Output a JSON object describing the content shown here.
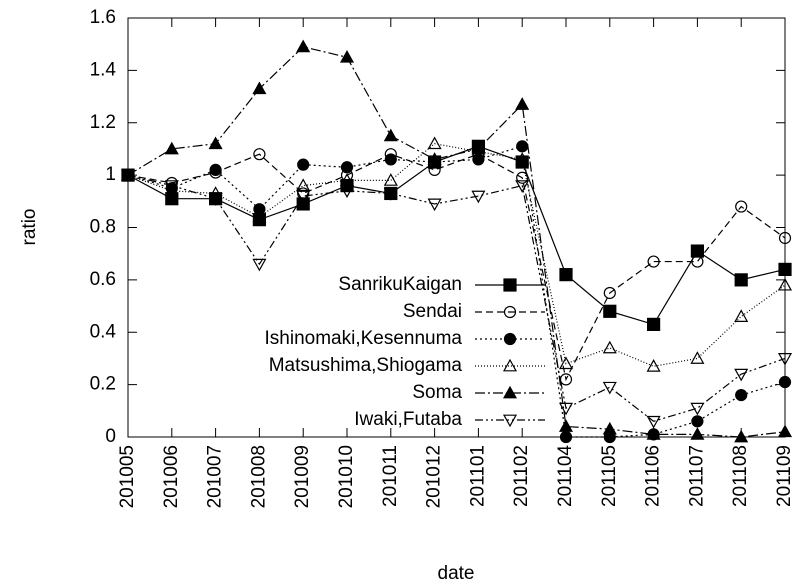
{
  "chart_data": {
    "type": "line",
    "xlabel": "date",
    "ylabel": "ratio",
    "categories": [
      "201005",
      "201006",
      "201007",
      "201008",
      "201009",
      "201010",
      "201011",
      "201012",
      "201101",
      "201102",
      "201104",
      "201105",
      "201106",
      "201107",
      "201108",
      "201109"
    ],
    "ylim": [
      0,
      1.6
    ],
    "yticks": [
      0,
      0.2,
      0.4,
      0.6,
      0.8,
      1,
      1.2,
      1.4,
      1.6
    ],
    "series": [
      {
        "name": "SanrikuKaigan",
        "color": "#000000",
        "values": [
          1,
          0.91,
          0.91,
          0.83,
          0.89,
          0.96,
          0.93,
          1.05,
          1.11,
          1.05,
          0.62,
          0.48,
          0.43,
          0.71,
          0.6,
          0.64
        ]
      },
      {
        "name": "Sendai",
        "color": "#000000",
        "values": [
          1,
          0.97,
          1.01,
          1.08,
          0.93,
          1.0,
          1.08,
          1.02,
          1.08,
          0.99,
          0.22,
          0.55,
          0.67,
          0.67,
          0.88,
          0.76
        ]
      },
      {
        "name": "Ishinomaki,Kesennuma",
        "color": "#000000",
        "values": [
          1,
          0.95,
          1.02,
          0.87,
          1.04,
          1.03,
          1.06,
          1.05,
          1.06,
          1.11,
          0,
          0,
          0.01,
          0.06,
          0.16,
          0.21
        ]
      },
      {
        "name": "Matsushima,Shiogama",
        "color": "#000000",
        "values": [
          1,
          0.94,
          0.93,
          0.84,
          0.96,
          0.98,
          0.98,
          1.12,
          1.09,
          1.06,
          0.28,
          0.34,
          0.27,
          0.3,
          0.46,
          0.58
        ]
      },
      {
        "name": "Soma",
        "color": "#000000",
        "values": [
          1,
          1.1,
          1.12,
          1.33,
          1.49,
          1.45,
          1.15,
          1.06,
          1.1,
          1.27,
          0.04,
          0.03,
          0.01,
          0.01,
          0,
          0.02
        ]
      },
      {
        "name": "Iwaki,Futaba",
        "color": "#000000",
        "values": [
          1,
          0.96,
          0.91,
          0.66,
          0.92,
          0.94,
          0.93,
          0.89,
          0.92,
          0.96,
          0.11,
          0.19,
          0.06,
          0.11,
          0.24,
          0.3
        ]
      }
    ]
  }
}
